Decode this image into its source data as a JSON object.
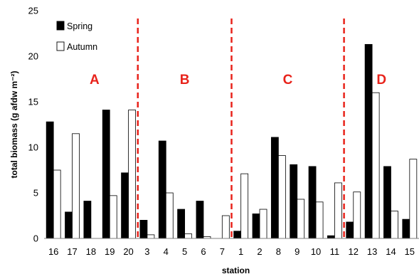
{
  "chart_data": {
    "type": "bar",
    "xlabel": "station",
    "ylabel": "total biomass (g afdw m⁻²)",
    "ylim": [
      0,
      25
    ],
    "yticks": [
      0,
      5,
      10,
      15,
      20,
      25
    ],
    "grid": false,
    "legend_position": "top-left",
    "categories": [
      "16",
      "17",
      "18",
      "19",
      "20",
      "3",
      "4",
      "5",
      "6",
      "7",
      "1",
      "2",
      "8",
      "9",
      "10",
      "11",
      "12",
      "13",
      "14",
      "15"
    ],
    "series": [
      {
        "name": "Spring",
        "color": "#000000",
        "values": [
          12.8,
          2.9,
          4.1,
          14.1,
          7.2,
          2.0,
          10.7,
          3.2,
          4.1,
          0.0,
          0.8,
          2.7,
          11.1,
          8.1,
          7.9,
          0.3,
          1.8,
          21.3,
          7.9,
          2.1
        ]
      },
      {
        "name": "Autumn",
        "color": "#ffffff",
        "values": [
          7.5,
          11.5,
          0.0,
          4.7,
          14.1,
          0.4,
          5.0,
          0.5,
          0.2,
          2.5,
          7.1,
          3.2,
          9.1,
          4.3,
          4.0,
          6.1,
          5.1,
          16.0,
          3.0,
          8.7
        ]
      }
    ],
    "groups": [
      {
        "label": "A",
        "start": 0,
        "end": 4
      },
      {
        "label": "B",
        "start": 5,
        "end": 9
      },
      {
        "label": "C",
        "start": 10,
        "end": 15
      },
      {
        "label": "D",
        "start": 16,
        "end": 19
      }
    ],
    "divider_color": "#e8231b"
  }
}
